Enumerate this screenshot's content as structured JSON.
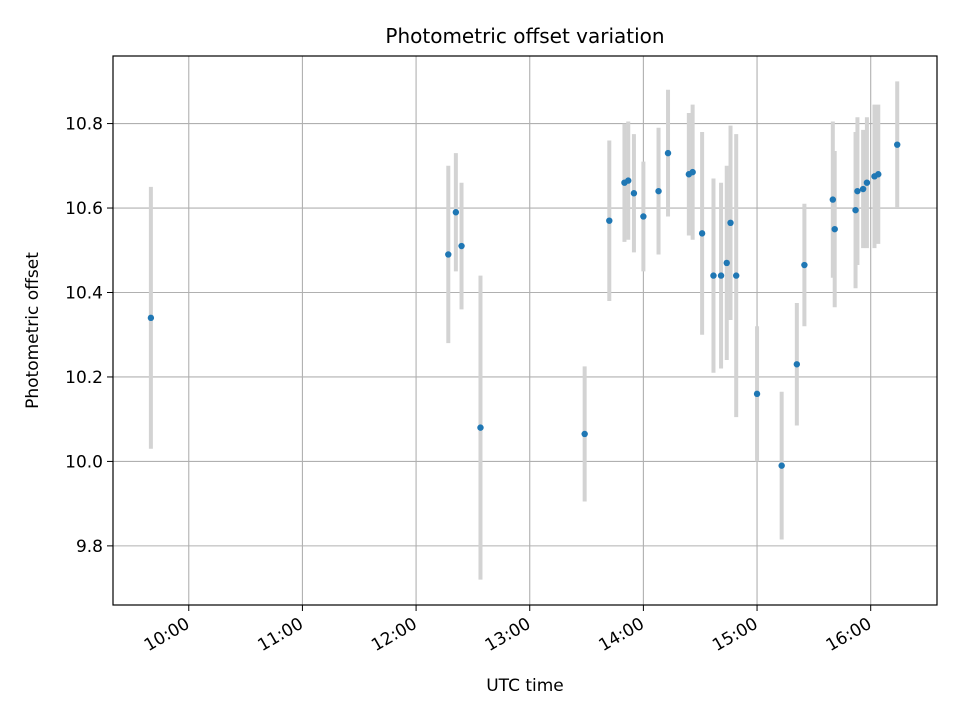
{
  "chart_data": {
    "type": "scatter",
    "title": "Photometric offset variation",
    "xlabel": "UTC time",
    "ylabel": "Photometric offset",
    "x_axis": "time",
    "x_ticks": [
      "10:00",
      "11:00",
      "12:00",
      "13:00",
      "14:00",
      "15:00",
      "16:00"
    ],
    "y_ticks": [
      "9.8",
      "10.0",
      "10.2",
      "10.4",
      "10.6",
      "10.8"
    ],
    "xlim": [
      "09:20",
      "16:35"
    ],
    "ylim": [
      9.66,
      10.96
    ],
    "grid": true,
    "marker_color": "#1f77b4",
    "errorbar_color": "#d3d3d3",
    "series": [
      {
        "points": [
          {
            "x": "09:40",
            "y": 10.34,
            "err": 0.31
          },
          {
            "x": "12:17",
            "y": 10.49,
            "err": 0.21
          },
          {
            "x": "12:21",
            "y": 10.59,
            "err": 0.14
          },
          {
            "x": "12:24",
            "y": 10.51,
            "err": 0.15
          },
          {
            "x": "12:34",
            "y": 10.08,
            "err": 0.36
          },
          {
            "x": "13:29",
            "y": 10.065,
            "err": 0.16
          },
          {
            "x": "13:42",
            "y": 10.57,
            "err": 0.19
          },
          {
            "x": "13:50",
            "y": 10.66,
            "err": 0.14
          },
          {
            "x": "13:52",
            "y": 10.665,
            "err": 0.14
          },
          {
            "x": "13:55",
            "y": 10.635,
            "err": 0.14
          },
          {
            "x": "14:00",
            "y": 10.58,
            "err": 0.13
          },
          {
            "x": "14:08",
            "y": 10.64,
            "err": 0.15
          },
          {
            "x": "14:13",
            "y": 10.73,
            "err": 0.15
          },
          {
            "x": "14:24",
            "y": 10.68,
            "err": 0.145
          },
          {
            "x": "14:26",
            "y": 10.685,
            "err": 0.16
          },
          {
            "x": "14:31",
            "y": 10.54,
            "err": 0.24
          },
          {
            "x": "14:37",
            "y": 10.44,
            "err": 0.23
          },
          {
            "x": "14:41",
            "y": 10.44,
            "err": 0.22
          },
          {
            "x": "14:44",
            "y": 10.47,
            "err": 0.23
          },
          {
            "x": "14:46",
            "y": 10.565,
            "err": 0.23
          },
          {
            "x": "14:49",
            "y": 10.44,
            "err": 0.335
          },
          {
            "x": "15:00",
            "y": 10.16,
            "err": 0.16
          },
          {
            "x": "15:13",
            "y": 9.99,
            "err": 0.175
          },
          {
            "x": "15:21",
            "y": 10.23,
            "err": 0.145
          },
          {
            "x": "15:25",
            "y": 10.465,
            "err": 0.145
          },
          {
            "x": "15:40",
            "y": 10.62,
            "err": 0.185
          },
          {
            "x": "15:41",
            "y": 10.55,
            "err": 0.185
          },
          {
            "x": "15:52",
            "y": 10.595,
            "err": 0.185
          },
          {
            "x": "15:53",
            "y": 10.64,
            "err": 0.175
          },
          {
            "x": "15:56",
            "y": 10.645,
            "err": 0.14
          },
          {
            "x": "15:58",
            "y": 10.66,
            "err": 0.155
          },
          {
            "x": "16:02",
            "y": 10.675,
            "err": 0.17
          },
          {
            "x": "16:04",
            "y": 10.68,
            "err": 0.165
          },
          {
            "x": "16:14",
            "y": 10.75,
            "err": 0.15
          }
        ]
      }
    ]
  }
}
